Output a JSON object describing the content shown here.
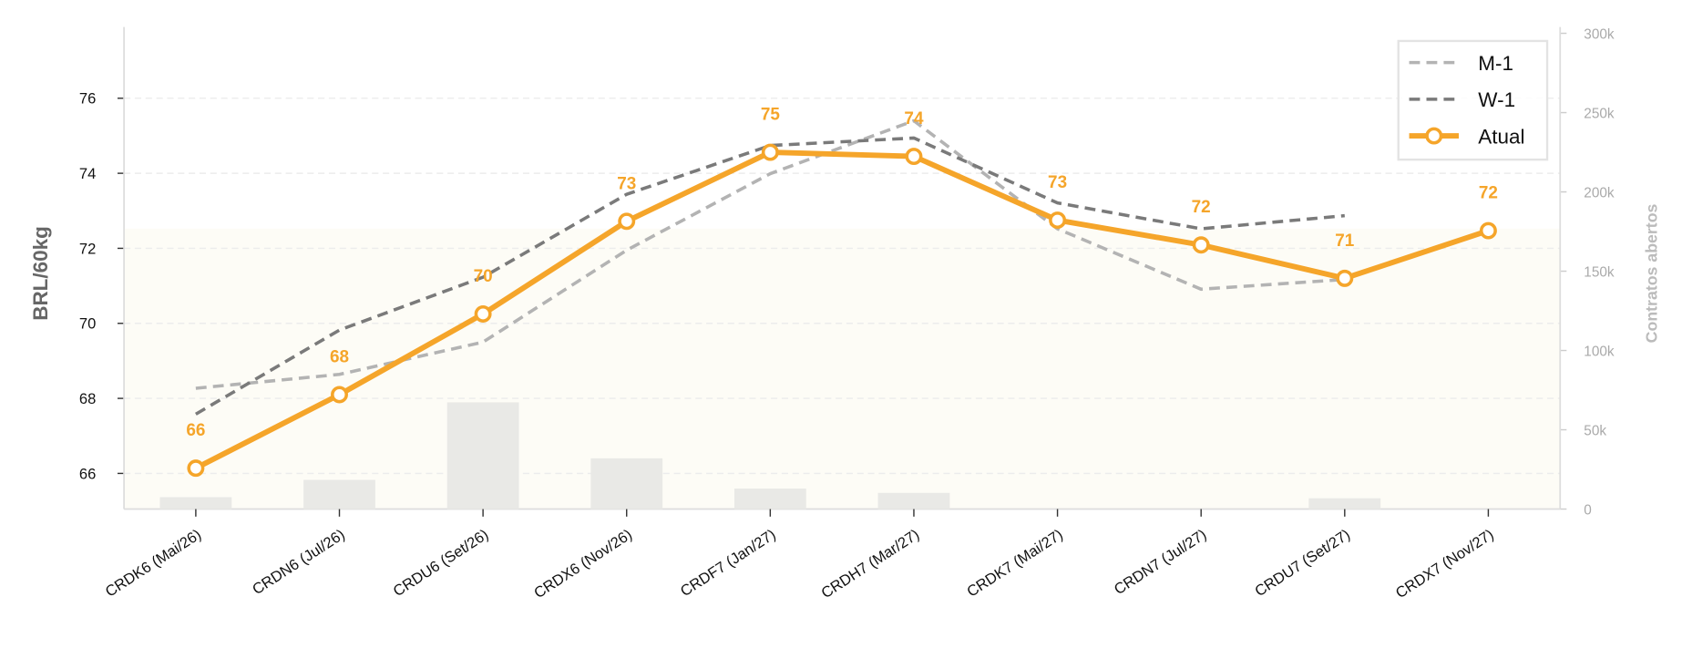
{
  "chart_data": {
    "type": "line",
    "categories": [
      "CRDK6 (Mai/26)",
      "CRDN6 (Jul/26)",
      "CRDU6 (Set/26)",
      "CRDX6 (Nov/26)",
      "CRDF7 (Jan/27)",
      "CRDH7 (Mar/27)",
      "CRDK7 (Mai/27)",
      "CRDN7 (Jul/27)",
      "CRDU7 (Set/27)",
      "CRDX7 (Nov/27)"
    ],
    "y_label": "BRL/60kg",
    "y2_label": "Contratos abertos",
    "ylim": [
      65.05,
      77.9
    ],
    "yticks": [
      66,
      68,
      70,
      72,
      74,
      76
    ],
    "y2lim": [
      0,
      304000
    ],
    "y2ticks": [
      0,
      {
        "value": 50000,
        "label": "50k"
      },
      {
        "value": 100000,
        "label": "100k"
      },
      {
        "value": 150000,
        "label": "150k"
      },
      {
        "value": 200000,
        "label": "200k"
      },
      {
        "value": 250000,
        "label": "250k"
      },
      {
        "value": 300000,
        "label": "300k"
      }
    ],
    "grid": true,
    "legend": "upper right",
    "series": [
      {
        "name": "Contratos abertos",
        "type": "bar",
        "axis": "y2",
        "color": "#e9e9e6",
        "values": [
          7500,
          18400,
          67300,
          32000,
          12900,
          10200,
          0,
          0,
          6800,
          0
        ]
      },
      {
        "name": "M-1",
        "type": "line",
        "style": "dashed",
        "color": "#b3b3b3",
        "values": [
          68.27,
          68.64,
          69.5,
          71.95,
          73.99,
          75.4,
          72.52,
          70.91,
          71.17,
          null
        ]
      },
      {
        "name": "W-1",
        "type": "line",
        "style": "dashed",
        "color": "#7a7a7a",
        "values": [
          67.58,
          69.82,
          71.23,
          73.44,
          74.74,
          74.94,
          73.21,
          72.52,
          72.87,
          null
        ]
      },
      {
        "name": "Atual",
        "type": "line",
        "style": "solid",
        "marker": "circle",
        "color": "#f5a52a",
        "values": [
          66.14,
          68.1,
          70.25,
          72.72,
          74.56,
          74.45,
          72.75,
          72.09,
          71.2,
          72.47
        ],
        "value_labels": [
          "66",
          "68",
          "70",
          "73",
          "75",
          "74",
          "73",
          "72",
          "71",
          "72"
        ]
      }
    ]
  }
}
